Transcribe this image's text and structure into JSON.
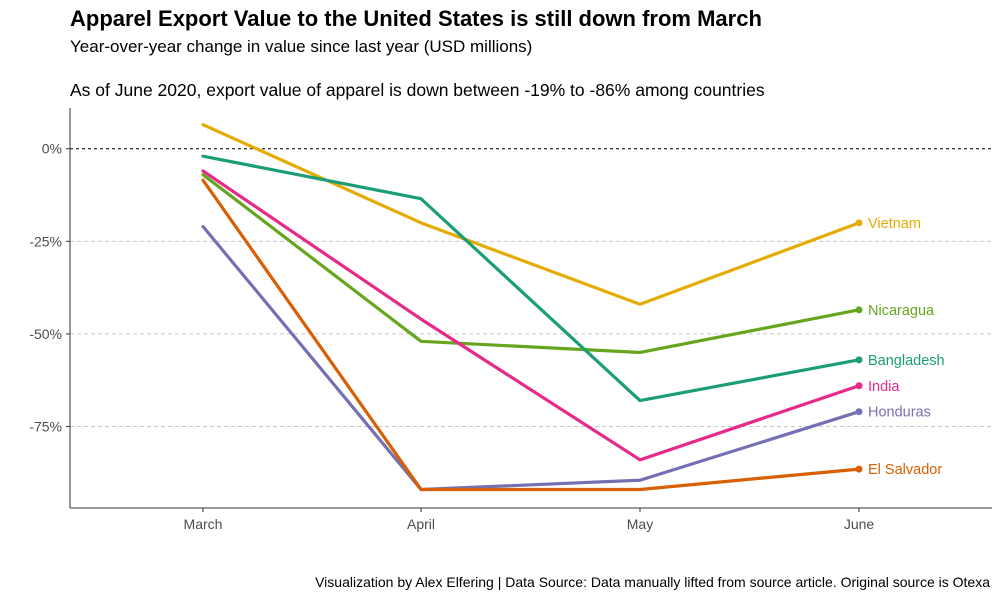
{
  "chart_data": {
    "type": "line",
    "title": "Apparel Export Value to the United States is still down from March",
    "subtitle": "Year-over-year change in value since last year (USD millions)",
    "note": "As of June 2020, export value of apparel is down between -19% to -86% among countries",
    "caption": "Visualization by Alex Elfering | Data Source: Data manually lifted from source article. Original source is Otexa",
    "categories": [
      "March",
      "April",
      "May",
      "June"
    ],
    "y_ticks": [
      0,
      -25,
      -50,
      -75
    ],
    "y_tick_labels": [
      "0%",
      "-25%",
      "-50%",
      "-75%"
    ],
    "ylim": [
      -97,
      11
    ],
    "reference_line": 0,
    "grid": "horizontal dashed",
    "legend": "direct labels at line ends",
    "series": [
      {
        "name": "Vietnam",
        "color": "#E6AB02",
        "values": [
          6.5,
          -20,
          -42,
          -20
        ]
      },
      {
        "name": "Nicaragua",
        "color": "#66A61E",
        "values": [
          -7,
          -52,
          -55,
          -43.5
        ]
      },
      {
        "name": "Bangladesh",
        "color": "#1B9E77",
        "values": [
          -2,
          -13.5,
          -68,
          -57
        ]
      },
      {
        "name": "India",
        "color": "#E7298A",
        "values": [
          -6,
          -46,
          -84,
          -64
        ]
      },
      {
        "name": "Honduras",
        "color": "#7570B3",
        "values": [
          -21,
          -92,
          -89.5,
          -71
        ]
      },
      {
        "name": "El Salvador",
        "color": "#D95F02",
        "values": [
          -8.5,
          -92,
          -92,
          -86.5
        ]
      }
    ]
  }
}
